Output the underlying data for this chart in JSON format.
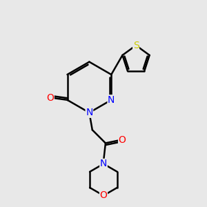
{
  "background_color": "#e8e8e8",
  "bond_color": "#000000",
  "bond_width": 1.8,
  "atom_colors": {
    "N": "#0000ff",
    "O": "#ff0000",
    "S": "#cccc00",
    "C": "#000000"
  },
  "font_size": 10
}
